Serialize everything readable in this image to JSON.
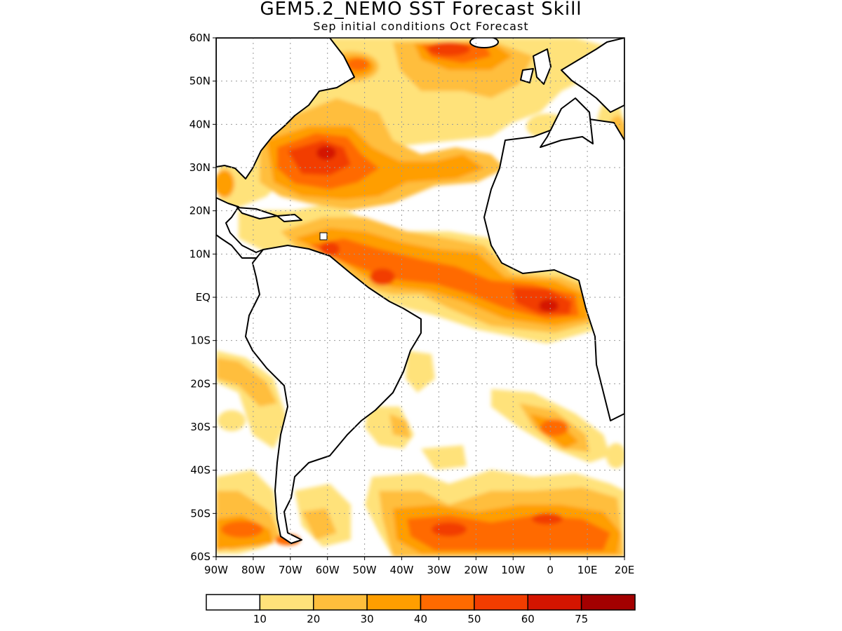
{
  "header": {
    "title": "GEM5.2_NEMO SST Forecast Skill",
    "subtitle": "Sep initial conditions  Oct Forecast"
  },
  "map": {
    "lat_labels": [
      "60N",
      "50N",
      "40N",
      "30N",
      "20N",
      "10N",
      "EQ",
      "10S",
      "20S",
      "30S",
      "40S",
      "50S",
      "60S"
    ],
    "lon_labels": [
      "90W",
      "80W",
      "70W",
      "60W",
      "50W",
      "40W",
      "30W",
      "20W",
      "10W",
      "0",
      "10E",
      "20E"
    ]
  },
  "legend": {
    "colors": [
      "#ffffff",
      "#ffe27a",
      "#ffbe3c",
      "#ff9e00",
      "#ff6a00",
      "#f23d00",
      "#d41500",
      "#a30000"
    ],
    "labels": [
      "10",
      "20",
      "30",
      "40",
      "50",
      "60",
      "75"
    ]
  },
  "colors": {
    "coast": "#000000",
    "grid": "#9a9a9a"
  }
}
